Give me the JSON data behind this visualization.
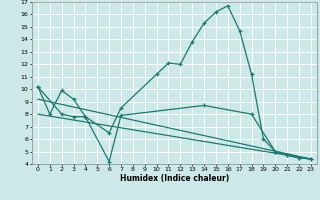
{
  "xlabel": "Humidex (Indice chaleur)",
  "bg_color": "#cce8e8",
  "line_color": "#1a7a6e",
  "xlim": [
    -0.5,
    23.5
  ],
  "ylim": [
    4,
    17
  ],
  "xticks": [
    0,
    1,
    2,
    3,
    4,
    5,
    6,
    7,
    8,
    9,
    10,
    11,
    12,
    13,
    14,
    15,
    16,
    17,
    18,
    19,
    20,
    21,
    22,
    23
  ],
  "yticks": [
    4,
    5,
    6,
    7,
    8,
    9,
    10,
    11,
    12,
    13,
    14,
    15,
    16,
    17
  ],
  "curve1_x": [
    0,
    1,
    2,
    3,
    4,
    6,
    7,
    10,
    11,
    12,
    13,
    14,
    15,
    16,
    17,
    18,
    19,
    20,
    21,
    22,
    23
  ],
  "curve1_y": [
    10.2,
    8.0,
    9.9,
    9.2,
    7.8,
    6.5,
    8.5,
    11.2,
    12.1,
    12.0,
    13.8,
    15.3,
    16.2,
    16.7,
    14.7,
    11.2,
    6.0,
    5.0,
    4.7,
    4.5,
    4.4
  ],
  "curve2_x": [
    0,
    2,
    3,
    4,
    6,
    7,
    14,
    18,
    20,
    21,
    22,
    23
  ],
  "curve2_y": [
    10.2,
    8.0,
    7.8,
    7.8,
    4.2,
    7.9,
    8.7,
    8.0,
    5.0,
    4.7,
    4.5,
    4.4
  ],
  "curve3_x": [
    0,
    23
  ],
  "curve3_y": [
    9.2,
    4.4
  ],
  "curve4_x": [
    0,
    23
  ],
  "curve4_y": [
    8.0,
    4.4
  ]
}
